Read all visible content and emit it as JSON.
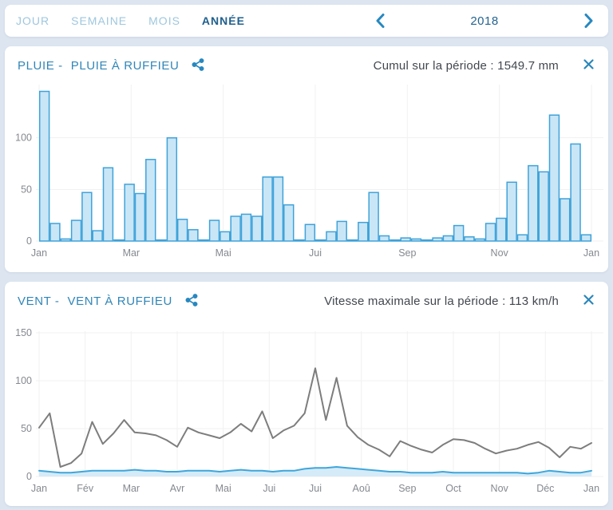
{
  "nav": {
    "tabs": [
      {
        "label": "JOUR",
        "active": false
      },
      {
        "label": "SEMAINE",
        "active": false
      },
      {
        "label": "MOIS",
        "active": false
      },
      {
        "label": "ANNÉE",
        "active": true
      }
    ],
    "period": "2018"
  },
  "rain_panel": {
    "title_prefix": "PLUIE -",
    "title_station": "PLUIE À RUFFIEU",
    "stat": "Cumul sur la période : 1549.7 mm"
  },
  "wind_panel": {
    "title_prefix": "VENT -",
    "title_station": "VENT À RUFFIEU",
    "stat": "Vitesse maximale sur la période : 113 km/h"
  },
  "colors": {
    "accent_blue": "#2788c0",
    "title_blue": "#3086b8",
    "bar_fill": "#c9e6f7",
    "bar_stroke": "#3fa2d9",
    "max_line": "#7d7d7d",
    "avg_line": "#3ea6da",
    "avg_area": "#d6ebf8",
    "grid": "#f1f1f1",
    "axis_text": "#85898f"
  },
  "chart_data": [
    {
      "type": "bar",
      "title": "PLUIE À RUFFIEU",
      "unit": "mm",
      "period_total": 1549.7,
      "x_tick_labels": [
        "Jan",
        "Mar",
        "Mai",
        "Jui",
        "Sep",
        "Nov",
        "Jan"
      ],
      "y_ticks": [
        0,
        50,
        100
      ],
      "ylim": [
        0,
        150
      ],
      "plot_top": 8,
      "grid": true,
      "values": [
        145,
        17,
        2,
        20,
        47,
        10,
        71,
        1,
        55,
        46,
        79,
        1,
        100,
        21,
        11,
        1,
        20,
        9,
        24,
        26,
        24,
        62,
        62,
        35,
        1,
        16,
        1,
        9,
        19,
        1,
        18,
        47,
        5,
        1,
        3,
        2,
        1,
        3,
        5,
        15,
        4,
        2,
        17,
        22,
        57,
        6,
        73,
        67,
        122,
        41,
        94,
        6
      ]
    },
    {
      "type": "line",
      "title": "VENT À RUFFIEU",
      "unit": "km/h",
      "period_max": 113,
      "x_tick_labels": [
        "Jan",
        "Fév",
        "Mar",
        "Avr",
        "Mai",
        "Jui",
        "Jui",
        "Aoû",
        "Sep",
        "Oct",
        "Nov",
        "Déc",
        "Jan"
      ],
      "y_ticks": [
        0,
        50,
        100,
        150
      ],
      "ylim": [
        0,
        150
      ],
      "plot_top": 22,
      "grid": true,
      "series": [
        {
          "name": "vitesse-maximale",
          "color": "#7d7d7d",
          "values": [
            51,
            66,
            10,
            14,
            24,
            57,
            34,
            45,
            59,
            46,
            45,
            43,
            38,
            31,
            51,
            46,
            43,
            40,
            46,
            55,
            47,
            68,
            40,
            48,
            53,
            66,
            113,
            59,
            103,
            53,
            41,
            33,
            28,
            21,
            37,
            32,
            28,
            25,
            33,
            39,
            38,
            35,
            29,
            24,
            27,
            29,
            33,
            36,
            30,
            20,
            31,
            29,
            35
          ]
        },
        {
          "name": "vitesse-moyenne",
          "color": "#3ea6da",
          "area_fill": "#d6ebf8",
          "values": [
            6,
            5,
            4,
            4,
            5,
            6,
            6,
            6,
            6,
            7,
            6,
            6,
            5,
            5,
            6,
            6,
            6,
            5,
            6,
            7,
            6,
            6,
            5,
            6,
            6,
            8,
            9,
            9,
            10,
            9,
            8,
            7,
            6,
            5,
            5,
            4,
            4,
            4,
            5,
            4,
            4,
            4,
            4,
            4,
            4,
            4,
            3,
            4,
            6,
            5,
            4,
            4,
            6
          ]
        }
      ]
    }
  ]
}
